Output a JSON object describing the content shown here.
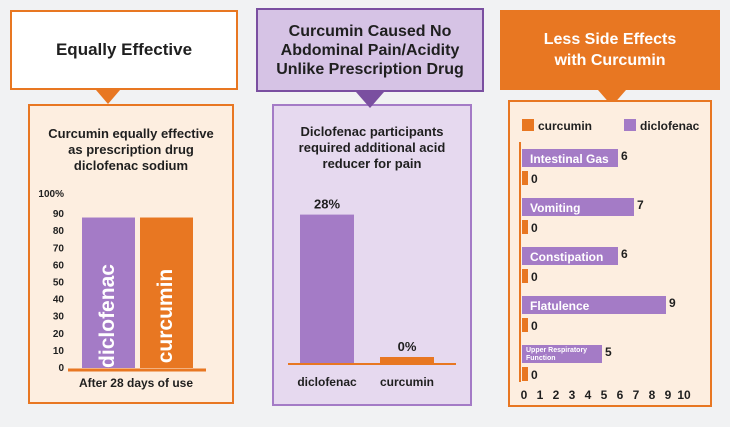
{
  "colors": {
    "orange": "#e87722",
    "purple": "#a47bc6",
    "lavender": "#e6d9ef",
    "lavender_title": "#d6c3e5",
    "cream": "#fdeee0",
    "text": "#1f1f1f",
    "white": "#ffffff"
  },
  "panels": [
    {
      "title_lines": [
        "Equally Effective"
      ]
    },
    {
      "title_lines": [
        "Curcumin Caused No",
        "Abdominal Pain/Acidity",
        "Unlike Prescription Drug"
      ]
    },
    {
      "title_lines": [
        "Less Side Effects",
        "with Curcumin"
      ]
    }
  ],
  "chart_data": [
    {
      "type": "bar",
      "title_lines": [
        "Curcumin equally effective",
        "as prescription drug",
        "diclofenac sodium"
      ],
      "categories": [
        "diclofenac",
        "curcumin"
      ],
      "values": [
        88,
        88
      ],
      "ylim": [
        0,
        100
      ],
      "yticks": [
        0,
        10,
        20,
        30,
        40,
        50,
        60,
        70,
        80,
        90
      ],
      "ytick_labels": [
        "0",
        "10",
        "20",
        "30",
        "40",
        "50",
        "60",
        "70",
        "80",
        "90"
      ],
      "ytop_label": "100%",
      "xlabel": "After 28 days of use",
      "bar_colors": [
        "#a47bc6",
        "#e87722"
      ]
    },
    {
      "type": "bar",
      "title_lines": [
        "Diclofenac participants",
        "required additional acid",
        "reducer for pain"
      ],
      "categories": [
        "diclofenac",
        "curcumin"
      ],
      "values": [
        28,
        0
      ],
      "value_labels": [
        "28%",
        "0%"
      ],
      "ylim": [
        0,
        30
      ],
      "bar_colors": [
        "#a47bc6",
        "#e87722"
      ]
    },
    {
      "type": "bar",
      "orientation": "horizontal",
      "legend": [
        "curcumin",
        "diclofenac"
      ],
      "categories": [
        "Intestinal Gas",
        "Vomiting",
        "Constipation",
        "Flatulence",
        "Upper Respiratory Function"
      ],
      "category_lines": [
        [
          "Intestinal Gas"
        ],
        [
          "Vomiting"
        ],
        [
          "Constipation"
        ],
        [
          "Flatulence"
        ],
        [
          "Upper Respiratory",
          "Function"
        ]
      ],
      "series": [
        {
          "name": "diclofenac",
          "values": [
            6,
            7,
            6,
            9,
            5
          ]
        },
        {
          "name": "curcumin",
          "values": [
            0,
            0,
            0,
            0,
            0
          ]
        }
      ],
      "xlim": [
        0,
        10
      ],
      "xticks": [
        "0",
        "1",
        "2",
        "3",
        "4",
        "5",
        "6",
        "7",
        "8",
        "9",
        "10"
      ]
    }
  ]
}
